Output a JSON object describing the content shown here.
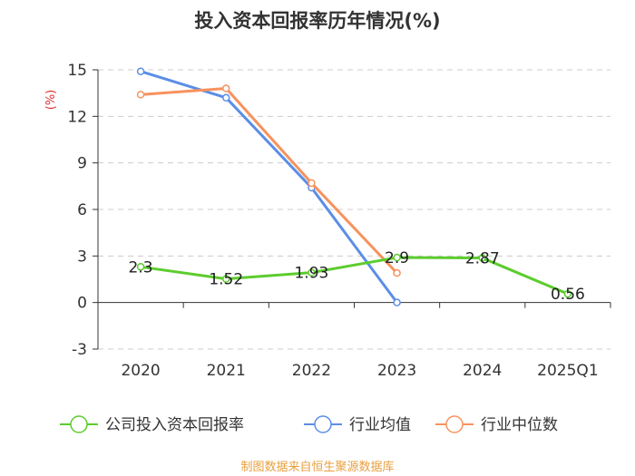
{
  "chart_data": {
    "type": "line",
    "title": "投入资本回报率历年情况(%)",
    "ylabel": "(%)",
    "xlabel": "",
    "categories": [
      "2020",
      "2021",
      "2022",
      "2023",
      "2024",
      "2025Q1"
    ],
    "ylim": [
      -3,
      15
    ],
    "yticks": [
      -3,
      0,
      3,
      6,
      9,
      12,
      15
    ],
    "grid": true,
    "legend_position": "bottom",
    "series": [
      {
        "name": "公司投入资本回报率",
        "color": "#5ccc2e",
        "values": [
          2.3,
          1.52,
          1.93,
          2.9,
          2.87,
          0.56
        ],
        "labels": [
          "2.3",
          "1.52",
          "1.93",
          "2.9",
          "2.87",
          "0.56"
        ]
      },
      {
        "name": "行业均值",
        "color": "#5b8ee6",
        "values": [
          14.9,
          13.2,
          7.4,
          0.0,
          null,
          null
        ]
      },
      {
        "name": "行业中位数",
        "color": "#f7925e",
        "values": [
          13.4,
          13.8,
          7.7,
          1.9,
          null,
          null
        ]
      }
    ]
  },
  "colors": {
    "ylabel": "#e03030",
    "source": "#e8a040",
    "axis": "#333333",
    "grid": "#cccccc"
  },
  "source_text": "制图数据来自恒生聚源数据库"
}
